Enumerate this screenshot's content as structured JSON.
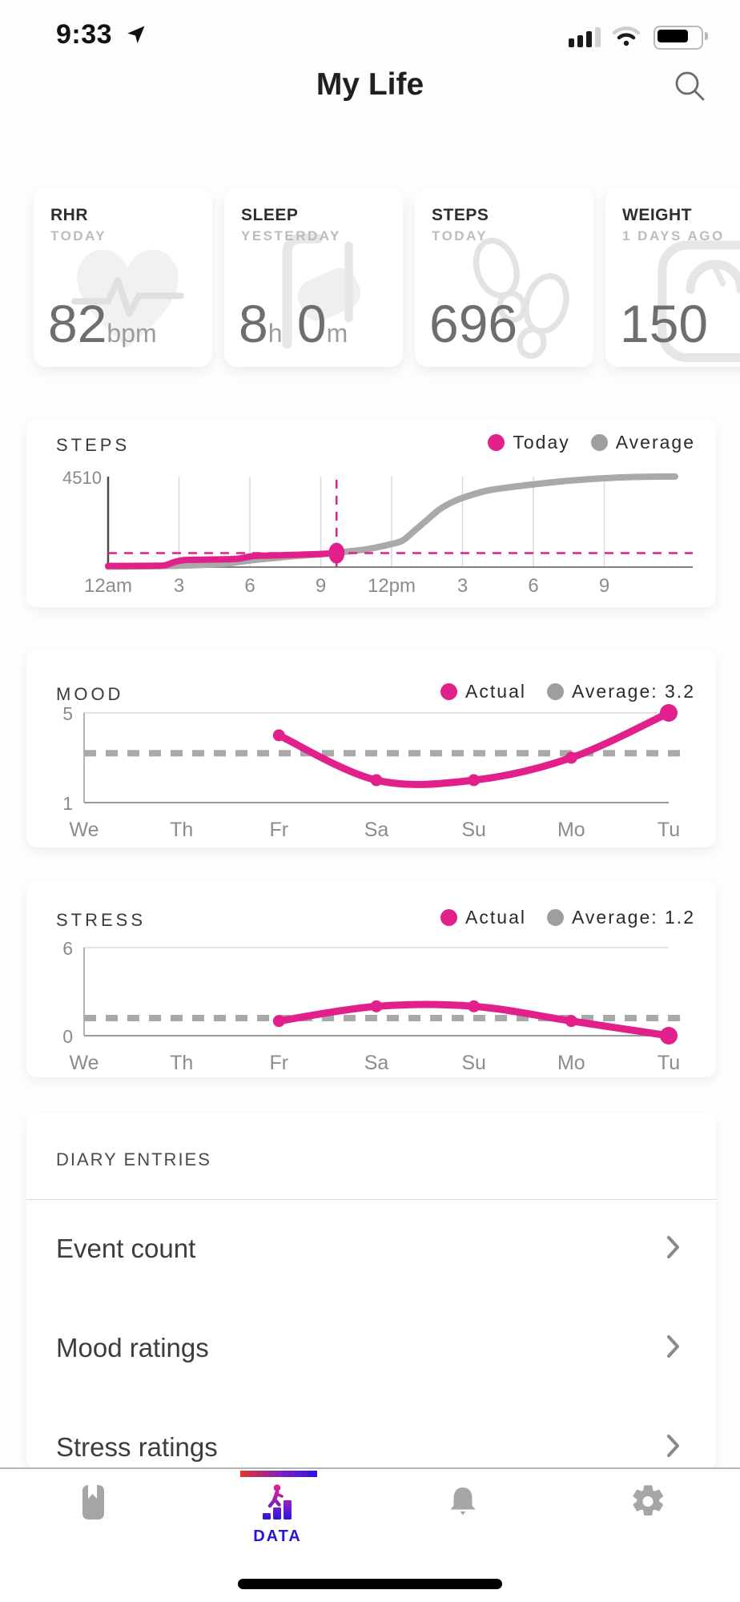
{
  "status_bar": {
    "time": "9:33"
  },
  "header": {
    "title": "My Life"
  },
  "summary_cards": [
    {
      "label": "RHR",
      "sublabel": "TODAY",
      "icon": "heart-ecg-icon",
      "value_parts": [
        {
          "text": "82",
          "style": "big"
        },
        {
          "text": "bpm",
          "style": "small"
        }
      ]
    },
    {
      "label": "SLEEP",
      "sublabel": "YESTERDAY",
      "icon": "bed-icon",
      "value_parts": [
        {
          "text": "8",
          "style": "big"
        },
        {
          "text": "h",
          "style": "small"
        },
        {
          "text": " 0",
          "style": "big"
        },
        {
          "text": "m",
          "style": "small"
        }
      ]
    },
    {
      "label": "STEPS",
      "sublabel": "TODAY",
      "icon": "footprints-icon",
      "value_parts": [
        {
          "text": "696",
          "style": "big"
        }
      ]
    },
    {
      "label": "WEIGHT",
      "sublabel": "1 DAYS AGO",
      "icon": "scale-icon",
      "value_parts": [
        {
          "text": "150",
          "style": "big"
        }
      ]
    }
  ],
  "chart_data": [
    {
      "id": "steps",
      "type": "line",
      "title": "STEPS",
      "legend": [
        {
          "label": "Today",
          "color": "#E2208B"
        },
        {
          "label": "Average",
          "color": "#9E9E9E"
        }
      ],
      "ylim": [
        0,
        4510
      ],
      "y_top_label": "4510",
      "xlim_hours": [
        0,
        24
      ],
      "x_tick_hours": [
        0,
        3,
        6,
        9,
        12,
        15,
        18,
        21
      ],
      "x_tick_labels": [
        "12am",
        "3",
        "6",
        "9",
        "12pm",
        "3",
        "6",
        "9"
      ],
      "series": [
        {
          "name": "Average",
          "color": "#A9A9A9",
          "x": [
            0,
            1,
            2,
            3,
            4,
            5,
            6,
            7,
            8,
            9,
            10,
            11,
            12,
            12.5,
            13,
            13.5,
            14,
            14.5,
            15,
            16,
            17,
            18,
            19,
            20,
            21,
            22,
            23,
            24
          ],
          "values": [
            20,
            30,
            45,
            70,
            110,
            180,
            330,
            450,
            560,
            640,
            760,
            900,
            1150,
            1350,
            1850,
            2350,
            2850,
            3200,
            3450,
            3800,
            3980,
            4120,
            4250,
            4350,
            4430,
            4480,
            4505,
            4510
          ]
        },
        {
          "name": "Today",
          "color": "#E2208B",
          "x": [
            0,
            0.5,
            1,
            1.5,
            2,
            2.4,
            2.8,
            3.2,
            4,
            5,
            5.5,
            5.8,
            6.2,
            7,
            8,
            9,
            9.67
          ],
          "values": [
            60,
            60,
            60,
            65,
            70,
            90,
            250,
            350,
            370,
            390,
            420,
            480,
            560,
            580,
            615,
            655,
            696
          ]
        }
      ],
      "marker": {
        "hour": 9.67,
        "value": 696
      },
      "reference_lines": {
        "horizontal_value": 696,
        "vertical_hour": 9.67
      }
    },
    {
      "id": "mood",
      "type": "line",
      "title": "MOOD",
      "legend": [
        {
          "label": "Actual",
          "color": "#E2208B"
        },
        {
          "label": "Average: 3.2",
          "color": "#9E9E9E"
        }
      ],
      "categories": [
        "We",
        "Th",
        "Fr",
        "Sa",
        "Su",
        "Mo",
        "Tu"
      ],
      "values": [
        null,
        null,
        4,
        2,
        2,
        3,
        5
      ],
      "average": 3.2,
      "ylim": [
        1,
        5
      ],
      "y_tick_labels": [
        "5",
        "1"
      ]
    },
    {
      "id": "stress",
      "type": "line",
      "title": "STRESS",
      "legend": [
        {
          "label": "Actual",
          "color": "#E2208B"
        },
        {
          "label": "Average: 1.2",
          "color": "#9E9E9E"
        }
      ],
      "categories": [
        "We",
        "Th",
        "Fr",
        "Sa",
        "Su",
        "Mo",
        "Tu"
      ],
      "values": [
        null,
        null,
        1,
        2,
        2,
        1,
        0
      ],
      "average": 1.2,
      "ylim": [
        0,
        6
      ],
      "y_tick_labels": [
        "6",
        "0"
      ]
    }
  ],
  "diary": {
    "heading": "DIARY ENTRIES",
    "rows": [
      {
        "label": "Event count"
      },
      {
        "label": "Mood ratings"
      },
      {
        "label": "Stress ratings"
      }
    ]
  },
  "tab_bar": {
    "tabs": [
      {
        "id": "journal",
        "icon": "journal-icon",
        "label": "",
        "active": false
      },
      {
        "id": "data",
        "icon": "data-stairs-icon",
        "label": "DATA",
        "active": true
      },
      {
        "id": "notifications",
        "icon": "bell-icon",
        "label": "",
        "active": false
      },
      {
        "id": "settings",
        "icon": "gear-icon",
        "label": "",
        "active": false
      }
    ]
  },
  "colors": {
    "accent_pink": "#E2208B",
    "average_gray": "#A9A9A9",
    "data_blue": "#2517D6",
    "tab_gray": "#A6A6A6",
    "indicator_gradient": [
      "#E03A2E",
      "#7A1FC0",
      "#2D14E0"
    ]
  }
}
